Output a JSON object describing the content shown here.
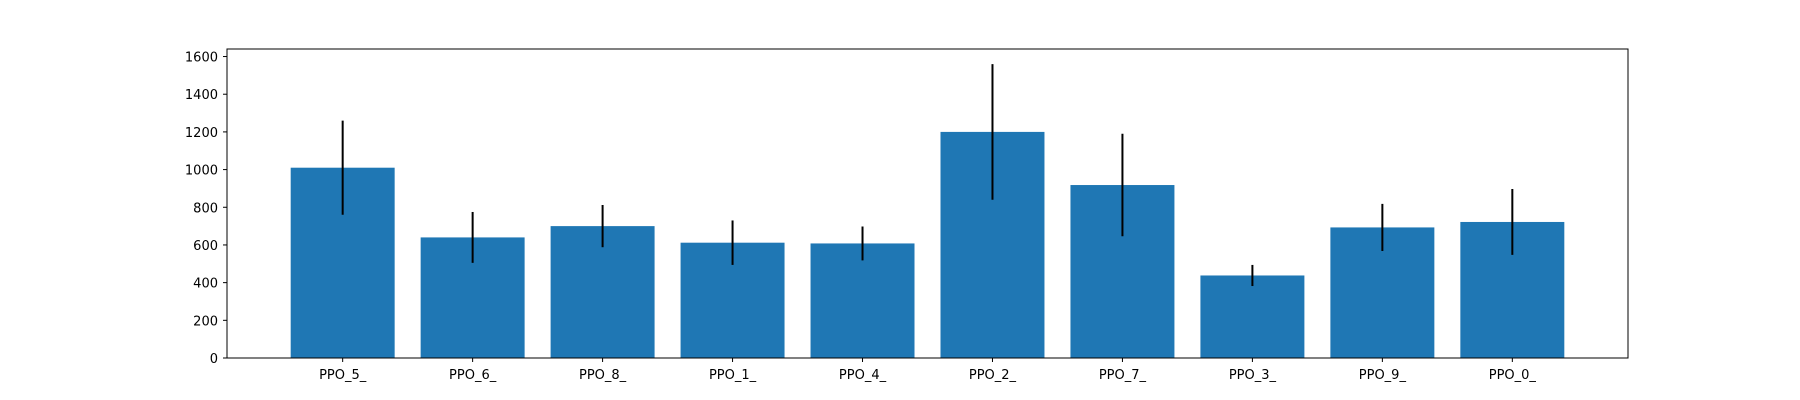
{
  "chart_data": {
    "type": "bar",
    "categories": [
      "PPO_5_",
      "PPO_6_",
      "PPO_8_",
      "PPO_1_",
      "PPO_4_",
      "PPO_2_",
      "PPO_7_",
      "PPO_3_",
      "PPO_9_",
      "PPO_0_"
    ],
    "values": [
      1010,
      640,
      700,
      612,
      608,
      1200,
      918,
      438,
      693,
      722
    ],
    "errors": [
      250,
      135,
      112,
      118,
      90,
      360,
      272,
      56,
      125,
      175
    ],
    "ylim": [
      0,
      1640
    ],
    "yticks": [
      0,
      200,
      400,
      600,
      800,
      1000,
      1200,
      1400,
      1600
    ],
    "title": "",
    "xlabel": "",
    "ylabel": "",
    "grid": false,
    "colors": {
      "bar": "#1f77b4",
      "error_bar": "#000000",
      "axes": "#000000"
    }
  }
}
